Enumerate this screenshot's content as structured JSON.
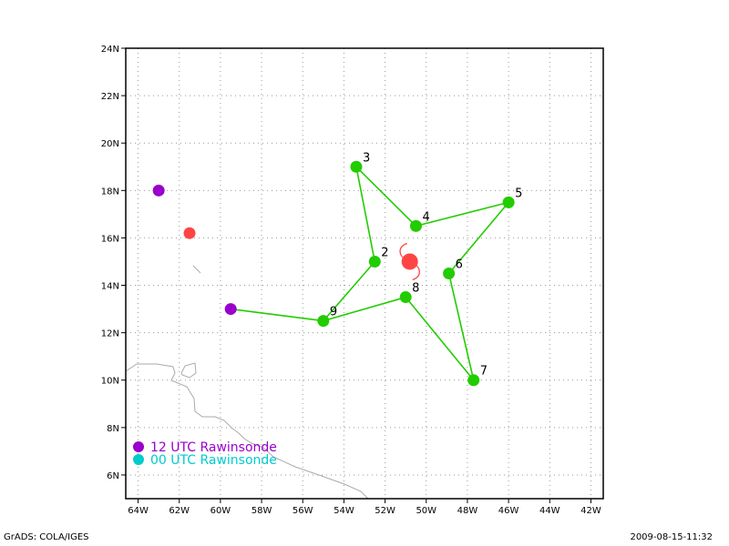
{
  "footer": {
    "left": "GrADS: COLA/IGES",
    "right": "2009-08-15-11:32"
  },
  "chart_data": {
    "type": "scatter",
    "xlim": [
      -64.6,
      -41.4
    ],
    "ylim": [
      5,
      24
    ],
    "x_ticks": [
      {
        "v": -64,
        "label": "64W"
      },
      {
        "v": -62,
        "label": "62W"
      },
      {
        "v": -60,
        "label": "60W"
      },
      {
        "v": -58,
        "label": "58W"
      },
      {
        "v": -56,
        "label": "56W"
      },
      {
        "v": -54,
        "label": "54W"
      },
      {
        "v": -52,
        "label": "52W"
      },
      {
        "v": -50,
        "label": "50W"
      },
      {
        "v": -48,
        "label": "48W"
      },
      {
        "v": -46,
        "label": "46W"
      },
      {
        "v": -44,
        "label": "44W"
      },
      {
        "v": -42,
        "label": "42W"
      }
    ],
    "y_ticks": [
      {
        "v": 6,
        "label": "6N"
      },
      {
        "v": 8,
        "label": "8N"
      },
      {
        "v": 10,
        "label": "10N"
      },
      {
        "v": 12,
        "label": "12N"
      },
      {
        "v": 14,
        "label": "14N"
      },
      {
        "v": 16,
        "label": "16N"
      },
      {
        "v": 18,
        "label": "18N"
      },
      {
        "v": 20,
        "label": "20N"
      },
      {
        "v": 22,
        "label": "22N"
      },
      {
        "v": 24,
        "label": "24N"
      }
    ],
    "grid": true,
    "track": {
      "color": "#22cc00",
      "points": [
        {
          "label": "2",
          "lon": -52.5,
          "lat": 15.0
        },
        {
          "label": "3",
          "lon": -53.4,
          "lat": 19.0
        },
        {
          "label": "4",
          "lon": -50.5,
          "lat": 16.5
        },
        {
          "label": "5",
          "lon": -46.0,
          "lat": 17.5
        },
        {
          "label": "6",
          "lon": -48.9,
          "lat": 14.5
        },
        {
          "label": "7",
          "lon": -47.7,
          "lat": 10.0
        },
        {
          "label": "8",
          "lon": -51.0,
          "lat": 13.5
        },
        {
          "label": "9",
          "lon": -55.0,
          "lat": 12.5
        },
        {
          "label": "",
          "lon": -59.5,
          "lat": 13.0
        }
      ],
      "segments": [
        [
          8,
          7
        ],
        [
          7,
          6
        ],
        [
          6,
          5
        ],
        [
          5,
          4
        ],
        [
          4,
          3
        ],
        [
          3,
          2
        ],
        [
          2,
          1
        ],
        [
          1,
          0
        ],
        [
          0,
          7
        ]
      ]
    },
    "rawinsondes": [
      {
        "lon": -63.0,
        "lat": 18.0,
        "color": "#9900cc"
      },
      {
        "lon": -59.5,
        "lat": 13.0,
        "color": "#9900cc"
      },
      {
        "lon": -61.5,
        "lat": 16.2,
        "color": "#ff4444"
      }
    ],
    "storm": {
      "lon": -50.8,
      "lat": 15.0,
      "color": "#ff4444"
    },
    "legend": [
      {
        "label": "12 UTC Rawinsonde",
        "color": "#9900cc"
      },
      {
        "label": "00 UTC Rawinsonde",
        "color": "#00cccc"
      }
    ]
  }
}
